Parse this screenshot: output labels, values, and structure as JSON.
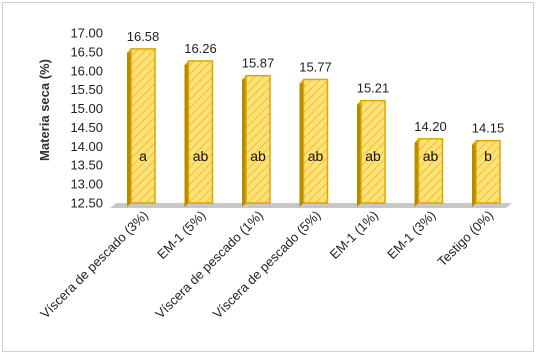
{
  "chart_data": {
    "type": "bar",
    "title": "",
    "xlabel": "",
    "ylabel": "Materia seca (%)",
    "ylim": [
      12.5,
      17.0
    ],
    "yticks": [
      "12.50",
      "13.00",
      "13.50",
      "14.00",
      "14.50",
      "15.00",
      "15.50",
      "16.00",
      "16.50",
      "17.00"
    ],
    "grid": false,
    "legend": "none",
    "bar_fill_color": "#ffd65a",
    "bar_stroke_color": "#d9a800",
    "bar_side_color": "#b78a00",
    "floor_color": "#c7c7c7",
    "categories": [
      "Víscera de pescado (3%)",
      "EM-1 (5%)",
      "Víscera de pescado (1%)",
      "Víscera de pescado (5%)",
      "EM-1 (1%)",
      "EM-1 (3%)",
      "Testigo (0%)"
    ],
    "values": [
      16.58,
      16.26,
      15.87,
      15.77,
      15.21,
      14.2,
      14.15
    ],
    "value_labels": [
      "16.58",
      "16.26",
      "15.87",
      "15.77",
      "15.21",
      "14.20",
      "14.15"
    ],
    "groups": [
      "a",
      "ab",
      "ab",
      "ab",
      "ab",
      "ab",
      "b"
    ]
  }
}
